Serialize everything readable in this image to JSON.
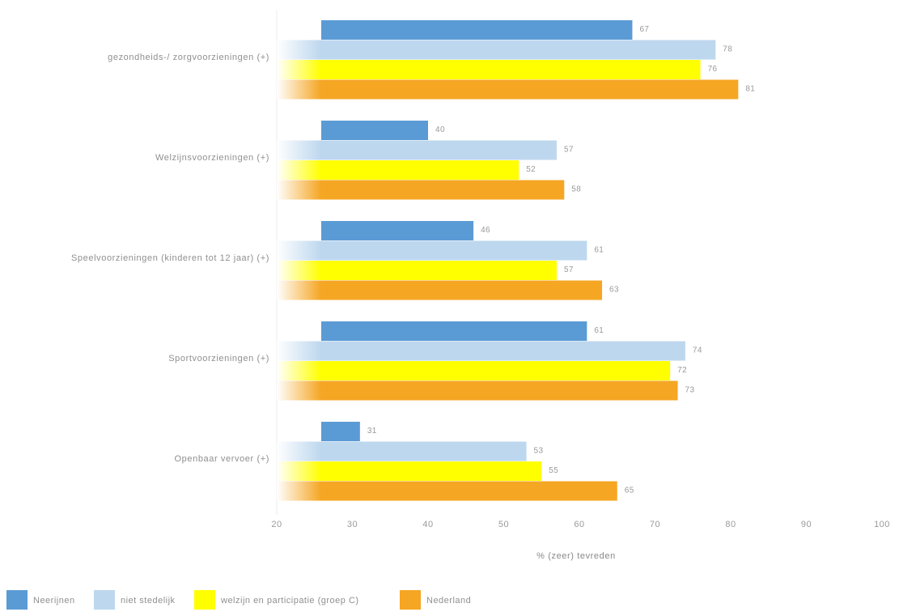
{
  "chart_data": {
    "type": "bar",
    "orientation": "horizontal",
    "categories": [
      "gezondheids-/ zorgvoorzieningen (+)",
      "Welzijnsvoorzieningen (+)",
      "Speelvoorzieningen (kinderen tot 12 jaar) (+)",
      "Sportvoorzieningen (+)",
      "Openbaar vervoer (+)"
    ],
    "series": [
      {
        "name": "Neerijnen",
        "color": "#5b9bd5",
        "values": [
          67,
          40,
          46,
          61,
          31
        ]
      },
      {
        "name": "niet stedelijk",
        "color": "#bdd7ee",
        "values": [
          78,
          57,
          61,
          74,
          53
        ]
      },
      {
        "name": "welzijn en participatie (groep C)",
        "color": "#ffff00",
        "values": [
          76,
          52,
          57,
          72,
          55
        ]
      },
      {
        "name": "Nederland",
        "color": "#f5a623",
        "values": [
          81,
          58,
          63,
          73,
          65
        ]
      }
    ],
    "xlabel": "% (zeer) tevreden",
    "xlim": [
      20,
      100
    ],
    "xticks": [
      20,
      30,
      40,
      50,
      60,
      70,
      80,
      90,
      100
    ],
    "grid": false,
    "legend_position": "bottom-left"
  }
}
